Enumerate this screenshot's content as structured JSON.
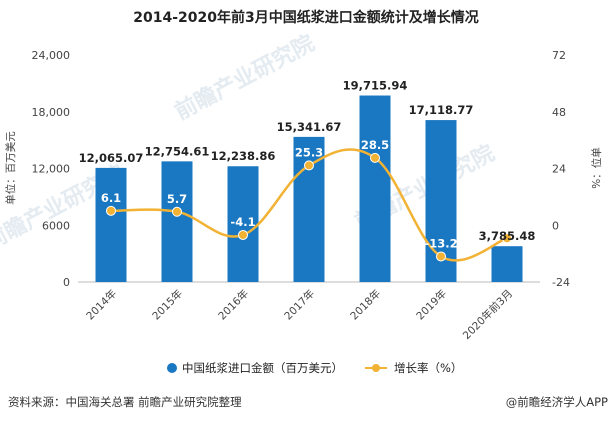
{
  "chart_data": {
    "type": "bar",
    "title": "2014-2020年前3月中国纸浆进口金额统计及增长情况",
    "categories": [
      "2014年",
      "2015年",
      "2016年",
      "2017年",
      "2018年",
      "2019年",
      "2020年前3月"
    ],
    "series": [
      {
        "name": "中国纸浆进口金额（百万美元）",
        "type": "bar",
        "axis": "left",
        "color": "#1a77c2",
        "values": [
          12065.07,
          12754.61,
          12238.86,
          15341.67,
          19715.94,
          17118.77,
          3785.48
        ],
        "labels": [
          "12,065.07",
          "12,754.61",
          "12,238.86",
          "15,341.67",
          "19,715.94",
          "17,118.77",
          "3,785.48"
        ]
      },
      {
        "name": "增长率（%）",
        "type": "line",
        "axis": "right",
        "color": "#f2b233",
        "values": [
          6.1,
          5.7,
          -4.1,
          25.3,
          28.5,
          -13.2,
          null
        ],
        "labels": [
          "6.1",
          "5.7",
          "-4.1",
          "25.3",
          "28.5",
          "-13.2",
          ""
        ],
        "line_end_value": -5.5
      }
    ],
    "ylabel_left": "单位：百万美元",
    "ylabel_right": "%：位单",
    "ylim_left": [
      0,
      24000
    ],
    "ylim_right": [
      -24,
      72
    ],
    "yticks_left": [
      "0",
      "6000",
      "12,000",
      "18,000",
      "24,000"
    ],
    "yticks_right": [
      "-24",
      "0",
      "24",
      "48",
      "72"
    ],
    "legend_position": "bottom",
    "grid": false
  },
  "footer": {
    "source": "资料来源：中国海关总署 前瞻产业研究院整理",
    "brand": "@前瞻经济学人APP"
  },
  "watermark": {
    "text": "前瞻产业研究院"
  }
}
